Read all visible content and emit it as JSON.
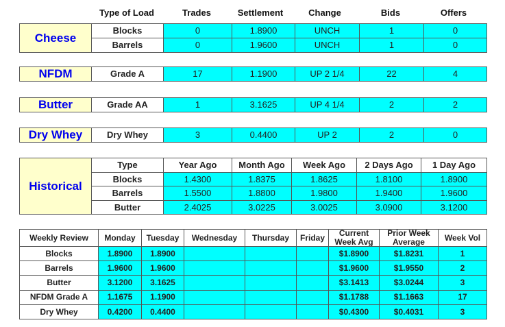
{
  "header": [
    "Type of Load",
    "Trades",
    "Settlement",
    "Change",
    "Bids",
    "Offers"
  ],
  "cheese": {
    "label": "Cheese",
    "rows": [
      [
        "Blocks",
        "0",
        "1.8900",
        "UNCH",
        "1",
        "0"
      ],
      [
        "Barrels",
        "0",
        "1.9600",
        "UNCH",
        "1",
        "0"
      ]
    ]
  },
  "nfdm": {
    "label": "NFDM",
    "rows": [
      [
        "Grade A",
        "17",
        "1.1900",
        "UP 2 1/4",
        "22",
        "4"
      ]
    ]
  },
  "butter": {
    "label": "Butter",
    "rows": [
      [
        "Grade AA",
        "1",
        "3.1625",
        "UP 4 1/4",
        "2",
        "2"
      ]
    ]
  },
  "dry_whey": {
    "label": "Dry Whey",
    "rows": [
      [
        "Dry Whey",
        "3",
        "0.4400",
        "UP 2",
        "2",
        "0"
      ]
    ]
  },
  "historical": {
    "label": "Historical",
    "header": [
      "Type",
      "Year Ago",
      "Month Ago",
      "Week Ago",
      "2 Days Ago",
      "1 Day Ago"
    ],
    "rows": [
      [
        "Blocks",
        "1.4300",
        "1.8375",
        "1.8625",
        "1.8100",
        "1.8900"
      ],
      [
        "Barrels",
        "1.5500",
        "1.8800",
        "1.9800",
        "1.9400",
        "1.9600"
      ],
      [
        "Butter",
        "2.4025",
        "3.0225",
        "3.0025",
        "3.0900",
        "3.1200"
      ]
    ]
  },
  "weekly_review": {
    "header": [
      "Weekly Review",
      "Monday",
      "Tuesday",
      "Wednesday",
      "Thursday",
      "Friday",
      "Current Week Avg",
      "Prior Week Average",
      "Week Vol"
    ],
    "rows": [
      [
        "Blocks",
        "1.8900",
        "1.8900",
        null,
        null,
        null,
        "$1.8900",
        "$1.8231",
        "1"
      ],
      [
        "Barrels",
        "1.9600",
        "1.9600",
        null,
        null,
        null,
        "$1.9600",
        "$1.9550",
        "2"
      ],
      [
        "Butter",
        "3.1200",
        "3.1625",
        null,
        null,
        null,
        "$3.1413",
        "$3.0244",
        "3"
      ],
      [
        "NFDM Grade A",
        "1.1675",
        "1.1900",
        null,
        null,
        null,
        "$1.1788",
        "$1.1663",
        "17"
      ],
      [
        "Dry Whey",
        "0.4200",
        "0.4400",
        null,
        null,
        null,
        "$0.4300",
        "$0.4031",
        "3"
      ]
    ]
  }
}
